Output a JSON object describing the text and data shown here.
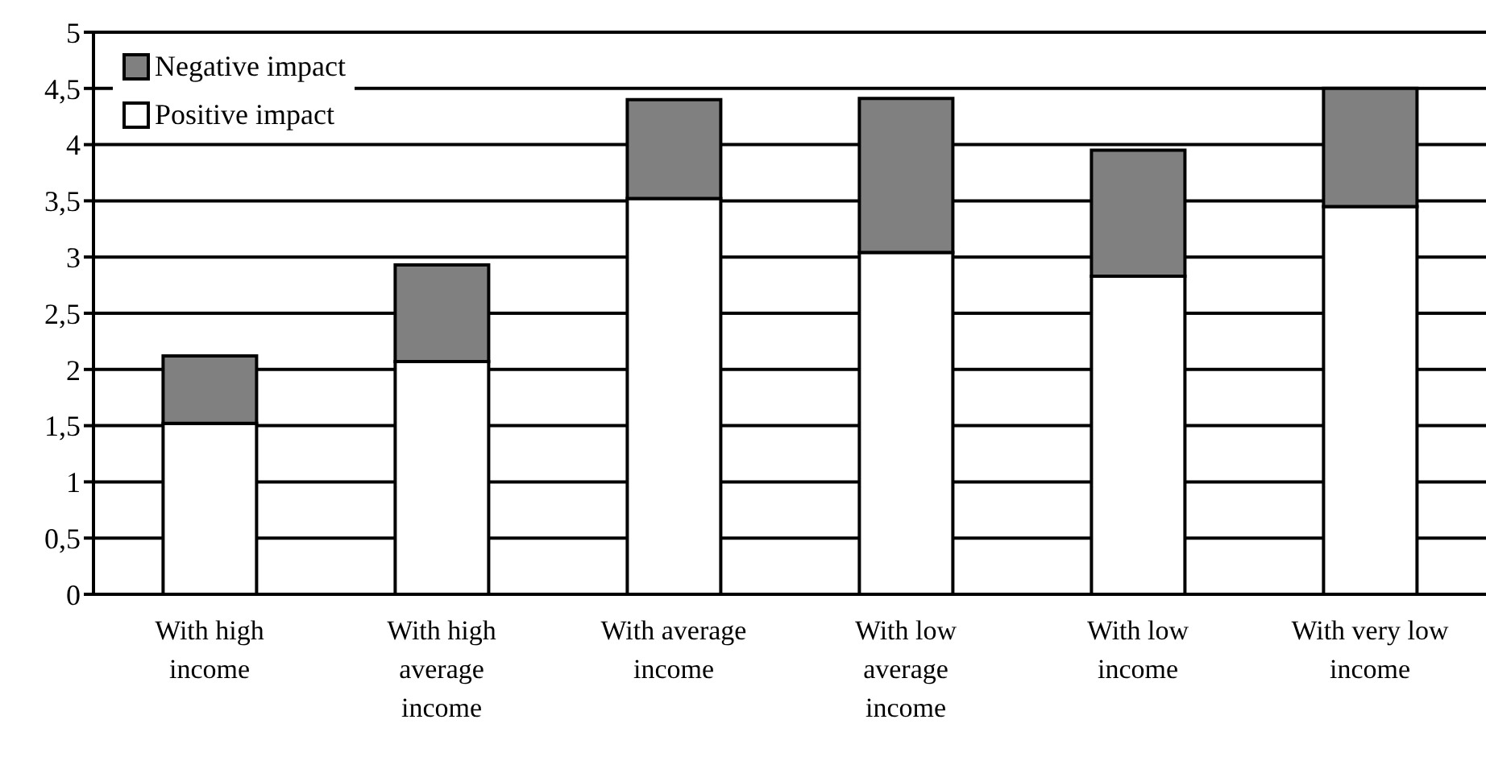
{
  "chart_data": {
    "type": "bar",
    "stacked": true,
    "categories": [
      "With high income",
      "With high average income",
      "With average income",
      "With low average income",
      "With low income",
      "With very low income"
    ],
    "series": [
      {
        "name": "Positive impact",
        "color": "#ffffff",
        "values": [
          1.52,
          2.07,
          3.52,
          3.04,
          2.83,
          3.45
        ]
      },
      {
        "name": "Negative impact",
        "color": "#808080",
        "values": [
          0.6,
          0.86,
          0.88,
          1.37,
          1.12,
          1.05
        ]
      }
    ],
    "ylim": [
      0,
      5
    ],
    "yticks": [
      0,
      {
        "value": 0.5,
        "label": "0,5"
      },
      1,
      {
        "value": 1.5,
        "label": "1,5"
      },
      2,
      {
        "value": 2.5,
        "label": "2,5"
      },
      3,
      {
        "value": 3.5,
        "label": "3,5"
      },
      4,
      {
        "value": 4.5,
        "label": "4,5"
      },
      5
    ],
    "grid": "y",
    "legend": "top left"
  }
}
